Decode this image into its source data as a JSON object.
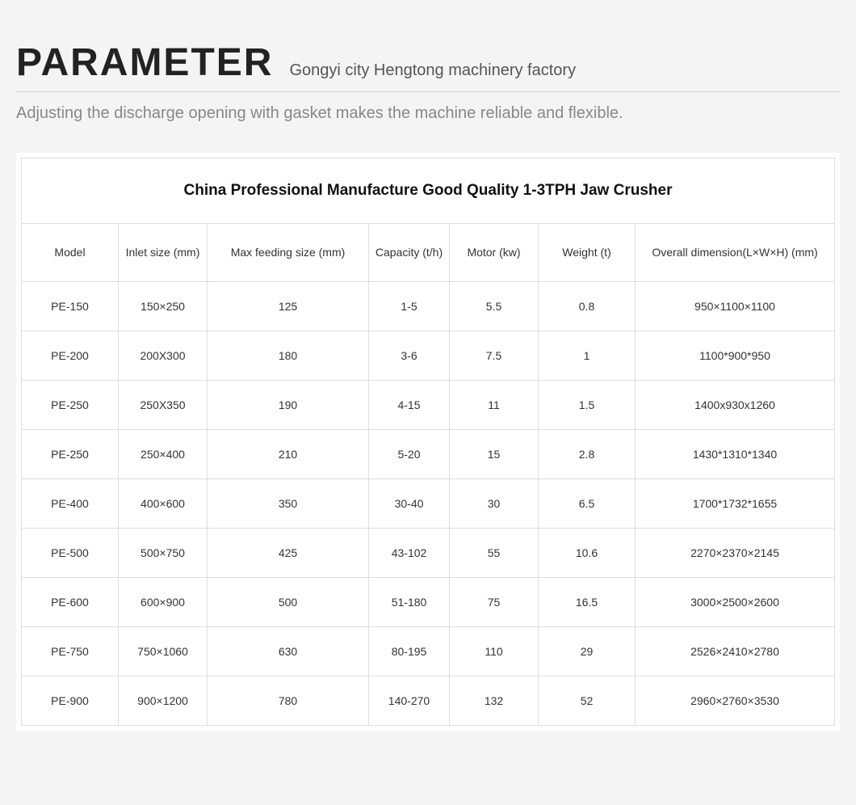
{
  "header": {
    "title": "PARAMETER",
    "subtitle": "Gongyi city Hengtong machinery factory",
    "description": "Adjusting the discharge opening with gasket makes the machine reliable and flexible."
  },
  "table": {
    "caption": "China Professional Manufacture Good Quality 1-3TPH Jaw Crusher",
    "columns": [
      "Model",
      "Inlet size (mm)",
      "Max feeding size (mm)",
      "Capacity (t/h)",
      "Motor (kw)",
      "Weight (t)",
      "Overall dimension(L×W×H) (mm)"
    ],
    "rows": [
      [
        "PE-150",
        "150×250",
        "125",
        "1-5",
        "5.5",
        "0.8",
        "950×1100×1100"
      ],
      [
        "PE-200",
        "200X300",
        "180",
        "3-6",
        "7.5",
        "1",
        "1100*900*950"
      ],
      [
        "PE-250",
        "250X350",
        "190",
        "4-15",
        "11",
        "1.5",
        "1400x930x1260"
      ],
      [
        "PE-250",
        "250×400",
        "210",
        "5-20",
        "15",
        "2.8",
        "1430*1310*1340"
      ],
      [
        "PE-400",
        "400×600",
        "350",
        "30-40",
        "30",
        "6.5",
        "1700*1732*1655"
      ],
      [
        "PE-500",
        "500×750",
        "425",
        "43-102",
        "55",
        "10.6",
        "2270×2370×2145"
      ],
      [
        "PE-600",
        "600×900",
        "500",
        "51-180",
        "75",
        "16.5",
        "3000×2500×2600"
      ],
      [
        "PE-750",
        "750×1060",
        "630",
        "80-195",
        "110",
        "29",
        "2526×2410×2780"
      ],
      [
        "PE-900",
        "900×1200",
        "780",
        "140-270",
        "132",
        "52",
        "2960×2760×3530"
      ]
    ],
    "styling": {
      "border_color": "#dddddd",
      "header_bg": "#ffffff",
      "row_bg": "#ffffff",
      "page_bg": "#f4f4f4",
      "caption_fontsize": 19,
      "cell_fontsize": 14,
      "title_fontsize": 48,
      "subtitle_fontsize": 20,
      "description_color": "#888888",
      "title_color": "#222222"
    }
  }
}
